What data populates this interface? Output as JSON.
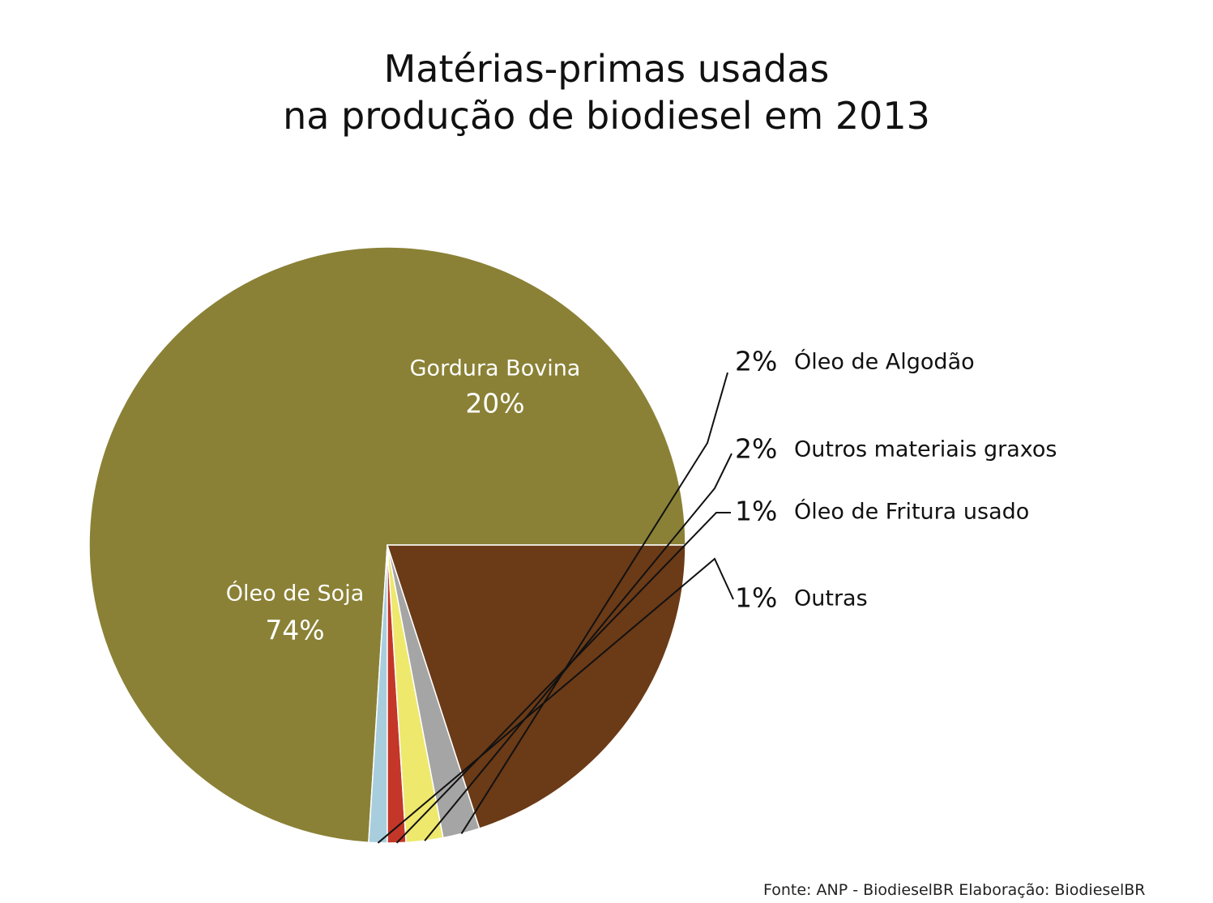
{
  "title": {
    "line1": "Matérias-primas usadas",
    "line2": "na produção de biodiesel em 2013"
  },
  "source": "Fonte: ANP - BiodieselBR Elaboração: BiodieselBR",
  "chart_data": {
    "type": "pie",
    "title": "Matérias-primas usadas na produção de biodiesel em 2013",
    "slices": [
      {
        "name": "Óleo de Soja",
        "value": 74,
        "value_label": "74%",
        "color": "#8a8136",
        "label_placement": "inside"
      },
      {
        "name": "Outras",
        "value": 1,
        "value_label": "1%",
        "color": "#a8cede",
        "label_placement": "outside"
      },
      {
        "name": "Óleo de Fritura usado",
        "value": 1,
        "value_label": "1%",
        "color": "#c33628",
        "label_placement": "outside"
      },
      {
        "name": "Outros materiais graxos",
        "value": 2,
        "value_label": "2%",
        "color": "#eee86d",
        "label_placement": "outside"
      },
      {
        "name": "Óleo de Algodão",
        "value": 2,
        "value_label": "2%",
        "color": "#a5a5a5",
        "label_placement": "outside"
      },
      {
        "name": "Gordura Bovina",
        "value": 20,
        "value_label": "20%",
        "color": "#6b3a17",
        "label_placement": "inside"
      }
    ],
    "legend": "none"
  }
}
